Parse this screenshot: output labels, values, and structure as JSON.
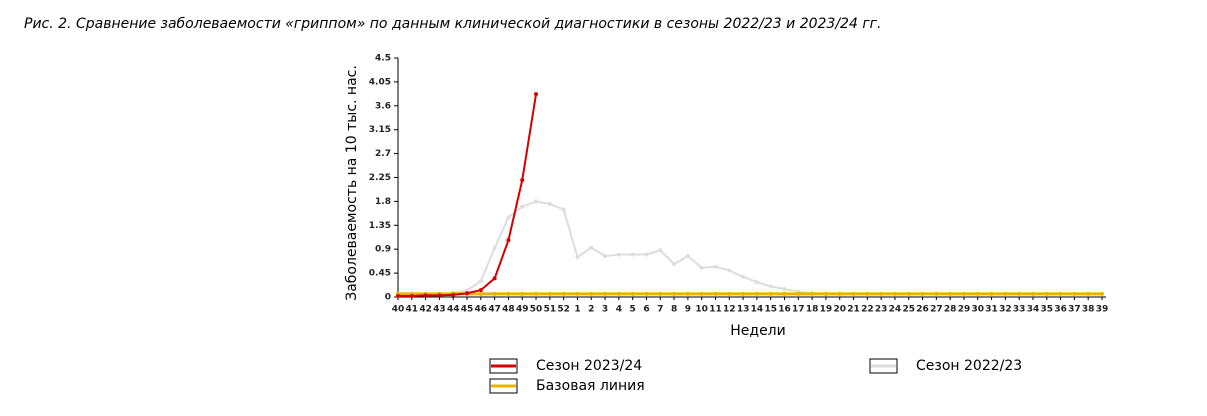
{
  "chart_data": {
    "type": "line",
    "title": "Рис. 2. Сравнение заболеваемости «гриппом» по данным клинической диагностики в сезоны 2022/23 и 2023/24 гг.",
    "y_label": "Заболеваемость на 10 тыс. нас.",
    "x_label": "Недели",
    "categories": [
      "40",
      "41",
      "42",
      "43",
      "44",
      "45",
      "46",
      "47",
      "48",
      "49",
      "50",
      "51",
      "52",
      "1",
      "2",
      "3",
      "4",
      "5",
      "6",
      "7",
      "8",
      "9",
      "10",
      "11",
      "12",
      "13",
      "14",
      "15",
      "16",
      "17",
      "18",
      "19",
      "20",
      "21",
      "22",
      "23",
      "24",
      "25",
      "26",
      "27",
      "28",
      "29",
      "30",
      "31",
      "32",
      "33",
      "34",
      "35",
      "36",
      "37",
      "38",
      "39"
    ],
    "ylim": [
      0,
      4.5
    ],
    "yticks": [
      0,
      0.45,
      0.9,
      1.35,
      1.8,
      2.25,
      2.7,
      3.15,
      3.6,
      4.05,
      4.5
    ],
    "series": [
      {
        "name": "Сезон 2023/24",
        "color": "#d40000",
        "values": [
          0.02,
          0.02,
          0.03,
          0.03,
          0.04,
          0.07,
          0.13,
          0.35,
          1.07,
          2.2,
          3.82,
          null,
          null,
          null,
          null,
          null,
          null,
          null,
          null,
          null,
          null,
          null,
          null,
          null,
          null,
          null,
          null,
          null,
          null,
          null,
          null,
          null,
          null,
          null,
          null,
          null,
          null,
          null,
          null,
          null,
          null,
          null,
          null,
          null,
          null,
          null,
          null,
          null,
          null,
          null,
          null,
          null
        ]
      },
      {
        "name": "Базовая линия",
        "color": "#e8b400",
        "values": [
          0.06,
          0.06,
          0.06,
          0.06,
          0.06,
          0.06,
          0.06,
          0.06,
          0.06,
          0.06,
          0.06,
          0.06,
          0.06,
          0.06,
          0.06,
          0.06,
          0.06,
          0.06,
          0.06,
          0.06,
          0.06,
          0.06,
          0.06,
          0.06,
          0.06,
          0.06,
          0.06,
          0.06,
          0.06,
          0.06,
          0.06,
          0.06,
          0.06,
          0.06,
          0.06,
          0.06,
          0.06,
          0.06,
          0.06,
          0.06,
          0.06,
          0.06,
          0.06,
          0.06,
          0.06,
          0.06,
          0.06,
          0.06,
          0.06,
          0.06,
          0.06,
          0.06
        ]
      },
      {
        "name": "Сезон 2022/23",
        "color": "#dddddd",
        "values": [
          0.02,
          0.03,
          0.04,
          0.05,
          0.08,
          0.12,
          0.3,
          0.92,
          1.5,
          1.7,
          1.8,
          1.75,
          1.65,
          0.75,
          0.93,
          0.77,
          0.8,
          0.8,
          0.8,
          0.88,
          0.62,
          0.77,
          0.55,
          0.57,
          0.5,
          0.38,
          0.28,
          0.2,
          0.15,
          0.1,
          0.07,
          0.05,
          null,
          null,
          null,
          null,
          null,
          null,
          null,
          null,
          null,
          null,
          null,
          null,
          null,
          null,
          null,
          null,
          null,
          null,
          null,
          null
        ]
      }
    ]
  }
}
